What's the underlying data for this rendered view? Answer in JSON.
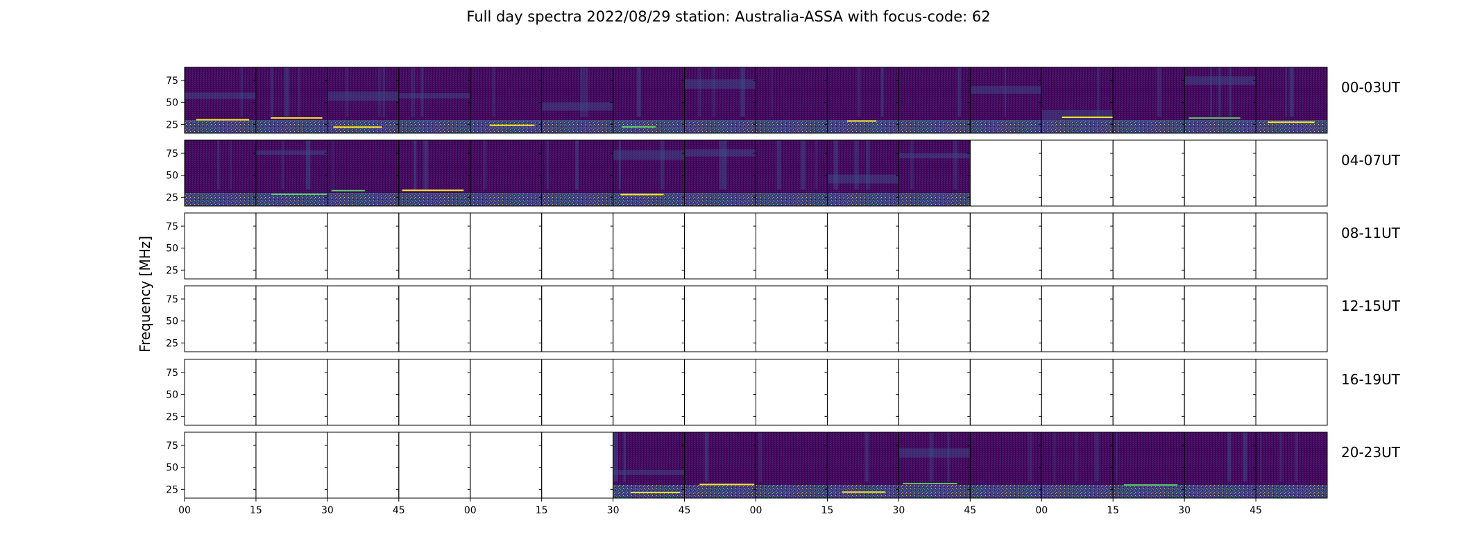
{
  "chart_data": {
    "type": "heatmap",
    "title": "Full day spectra 2022/08/29 station: Australia-ASSA with focus-code: 62",
    "ylabel": "Frequency [MHz]",
    "ylim": [
      15,
      90
    ],
    "yticks": [
      "25",
      "50",
      "75"
    ],
    "ytick_values": [
      25,
      50,
      75
    ],
    "xticks": [
      "00",
      "15",
      "30",
      "45",
      "00",
      "15",
      "30",
      "45",
      "00",
      "15",
      "30",
      "45",
      "00",
      "15",
      "30",
      "45"
    ],
    "panels_per_row": 16,
    "panel_minutes": 15,
    "rows": [
      {
        "label": "00-03UT",
        "has_data": [
          1,
          1,
          1,
          1,
          1,
          1,
          1,
          1,
          1,
          1,
          1,
          1,
          1,
          1,
          1,
          1
        ]
      },
      {
        "label": "04-07UT",
        "has_data": [
          1,
          1,
          1,
          1,
          1,
          1,
          1,
          1,
          1,
          1,
          1,
          0,
          0,
          0,
          0,
          0
        ]
      },
      {
        "label": "08-11UT",
        "has_data": [
          0,
          0,
          0,
          0,
          0,
          0,
          0,
          0,
          0,
          0,
          0,
          0,
          0,
          0,
          0,
          0
        ]
      },
      {
        "label": "12-15UT",
        "has_data": [
          0,
          0,
          0,
          0,
          0,
          0,
          0,
          0,
          0,
          0,
          0,
          0,
          0,
          0,
          0,
          0
        ]
      },
      {
        "label": "16-19UT",
        "has_data": [
          0,
          0,
          0,
          0,
          0,
          0,
          0,
          0,
          0,
          0,
          0,
          0,
          0,
          0,
          0,
          0
        ]
      },
      {
        "label": "20-23UT",
        "has_data": [
          0,
          0,
          0,
          0,
          0,
          0,
          1,
          1,
          1,
          1,
          1,
          1,
          1,
          1,
          1,
          1
        ]
      }
    ],
    "colormap": [
      "#440154",
      "#3b528b",
      "#21918c",
      "#5ec962",
      "#fde725"
    ]
  }
}
